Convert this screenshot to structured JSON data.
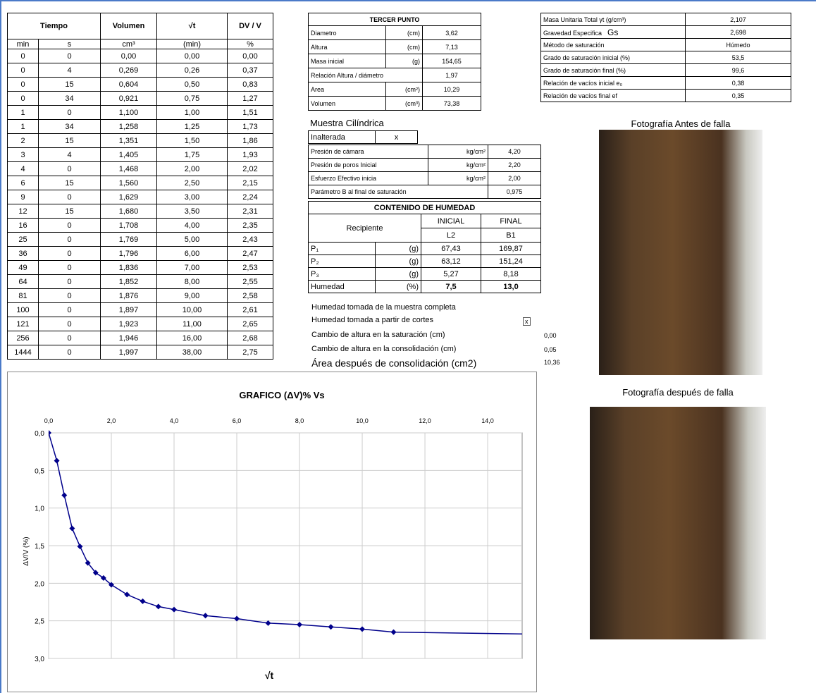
{
  "left_table": {
    "headers": [
      "Tiempo",
      "Volumen",
      "√t",
      "DV / V"
    ],
    "units": [
      "min",
      "s",
      "cm³",
      "(min)",
      "%"
    ],
    "rows": [
      [
        "0",
        "0",
        "0,00",
        "0,00",
        "0,00"
      ],
      [
        "0",
        "4",
        "0,269",
        "0,26",
        "0,37"
      ],
      [
        "0",
        "15",
        "0,604",
        "0,50",
        "0,83"
      ],
      [
        "0",
        "34",
        "0,921",
        "0,75",
        "1,27"
      ],
      [
        "1",
        "0",
        "1,100",
        "1,00",
        "1,51"
      ],
      [
        "1",
        "34",
        "1,258",
        "1,25",
        "1,73"
      ],
      [
        "2",
        "15",
        "1,351",
        "1,50",
        "1,86"
      ],
      [
        "3",
        "4",
        "1,405",
        "1,75",
        "1,93"
      ],
      [
        "4",
        "0",
        "1,468",
        "2,00",
        "2,02"
      ],
      [
        "6",
        "15",
        "1,560",
        "2,50",
        "2,15"
      ],
      [
        "9",
        "0",
        "1,629",
        "3,00",
        "2,24"
      ],
      [
        "12",
        "15",
        "1,680",
        "3,50",
        "2,31"
      ],
      [
        "16",
        "0",
        "1,708",
        "4,00",
        "2,35"
      ],
      [
        "25",
        "0",
        "1,769",
        "5,00",
        "2,43"
      ],
      [
        "36",
        "0",
        "1,796",
        "6,00",
        "2,47"
      ],
      [
        "49",
        "0",
        "1,836",
        "7,00",
        "2,53"
      ],
      [
        "64",
        "0",
        "1,852",
        "8,00",
        "2,55"
      ],
      [
        "81",
        "0",
        "1,876",
        "9,00",
        "2,58"
      ],
      [
        "100",
        "0",
        "1,897",
        "10,00",
        "2,61"
      ],
      [
        "121",
        "0",
        "1,923",
        "11,00",
        "2,65"
      ],
      [
        "256",
        "0",
        "1,946",
        "16,00",
        "2,68"
      ],
      [
        "1444",
        "0",
        "1,997",
        "38,00",
        "2,75"
      ]
    ]
  },
  "tercer_punto": {
    "title": "TERCER PUNTO",
    "rows": [
      {
        "label": "Diametro",
        "unit": "(cm)",
        "value": "3,62"
      },
      {
        "label": "Altura",
        "unit": "(cm)",
        "value": "7,13"
      },
      {
        "label": "Masa inicial",
        "unit": "(g)",
        "value": "154,65"
      },
      {
        "label": "Relación Altura / diámetro",
        "value": "1,97"
      },
      {
        "label": "Area",
        "unit": "(cm²)",
        "value": "10,29"
      },
      {
        "label": "Volumen",
        "unit": "(cm³)",
        "value": "73,38"
      }
    ]
  },
  "sample": {
    "shape": "Muestra Cilíndrica",
    "condition": "Inalterada",
    "mark": "x"
  },
  "pressures": [
    {
      "label": "Presión de cámara",
      "unit": "kg/cm²",
      "value": "4,20"
    },
    {
      "label": "Presión de poros Inicial",
      "unit": "kg/cm²",
      "value": "2,20"
    },
    {
      "label": "Esfuerzo Efectivo inicia",
      "unit": "kg/cm²",
      "value": "2,00"
    },
    {
      "label": "Parámetro B al final de saturación",
      "value": "0,975"
    }
  ],
  "humedad": {
    "title": "CONTENIDO DE HUMEDAD",
    "columns": [
      "INICIAL",
      "FINAL"
    ],
    "recipiente": {
      "label": "Recipiente",
      "values": [
        "L2",
        "B1"
      ]
    },
    "rows": [
      {
        "label": "P₁",
        "unit": "(g)",
        "values": [
          "67,43",
          "169,87"
        ]
      },
      {
        "label": "P₂",
        "unit": "(g)",
        "values": [
          "63,12",
          "151,24"
        ]
      },
      {
        "label": "P₃",
        "unit": "(g)",
        "values": [
          "5,27",
          "8,18"
        ]
      },
      {
        "label": "Humedad",
        "unit": "(%)",
        "values": [
          "7,5",
          "13,0"
        ]
      }
    ]
  },
  "notes": [
    {
      "text": "Humedad tomada de la muestra completa"
    },
    {
      "text": "Humedad tomada a partir de cortes",
      "mark": "x"
    },
    {
      "text": "Cambio de altura en la saturación (cm)",
      "value": "0,00"
    },
    {
      "text": "Cambio de altura en la consolidación (cm)",
      "value": "0,05"
    },
    {
      "text": "Área después de consolidación (cm2)",
      "value": "10,36"
    }
  ],
  "properties": [
    {
      "label": "Masa Unitaria Total γt (g/cm³)",
      "value": "2,107"
    },
    {
      "label": "Gravedad Especifica",
      "symbol": "Gs",
      "value": "2,698"
    },
    {
      "label": "Método de saturación",
      "value": "Húmedo"
    },
    {
      "label": "Grado de saturación inicial (%)",
      "value": "53,5"
    },
    {
      "label": "Grado de saturación final  (%)",
      "value": "99,6"
    },
    {
      "label": "Relación de vacíos inicial e₀",
      "value": "0,38"
    },
    {
      "label": "Relación de vacíos final ef",
      "value": "0,35"
    }
  ],
  "photos": [
    "Fotografía Antes de  falla",
    "Fotografía después de  falla"
  ],
  "chart_data": {
    "type": "line",
    "title": "GRAFICO (ΔV)% Vs",
    "xlabel": "√t",
    "ylabel": "ΔV/V (%)",
    "color": "#00008b",
    "grid": true,
    "y_inverted": true,
    "x_axis_position": "top",
    "x": [
      0,
      0.26,
      0.5,
      0.75,
      1,
      1.25,
      1.5,
      1.75,
      2,
      2.5,
      3,
      3.5,
      4,
      5,
      6,
      7,
      8,
      9,
      10,
      11,
      16
    ],
    "values": [
      0,
      0.37,
      0.83,
      1.27,
      1.51,
      1.73,
      1.86,
      1.93,
      2.02,
      2.15,
      2.24,
      2.31,
      2.35,
      2.43,
      2.47,
      2.53,
      2.55,
      2.58,
      2.61,
      2.65,
      2.68
    ],
    "xlim": [
      0,
      15.1
    ],
    "ylim": [
      0,
      3
    ],
    "xticks": [
      {
        "value": 0,
        "label": "0,0"
      },
      {
        "value": 2,
        "label": "2,0"
      },
      {
        "value": 4,
        "label": "4,0"
      },
      {
        "value": 6,
        "label": "6,0"
      },
      {
        "value": 8,
        "label": "8,0"
      },
      {
        "value": 10,
        "label": "10,0"
      },
      {
        "value": 12,
        "label": "12,0"
      },
      {
        "value": 14,
        "label": "14,0"
      }
    ],
    "yticks": [
      {
        "value": 0,
        "label": "0,0"
      },
      {
        "value": 0.5,
        "label": "0,5"
      },
      {
        "value": 1,
        "label": "1,0"
      },
      {
        "value": 1.5,
        "label": "1,5"
      },
      {
        "value": 2,
        "label": "2,0"
      },
      {
        "value": 2.5,
        "label": "2,5"
      },
      {
        "value": 3,
        "label": "3,0"
      }
    ]
  }
}
